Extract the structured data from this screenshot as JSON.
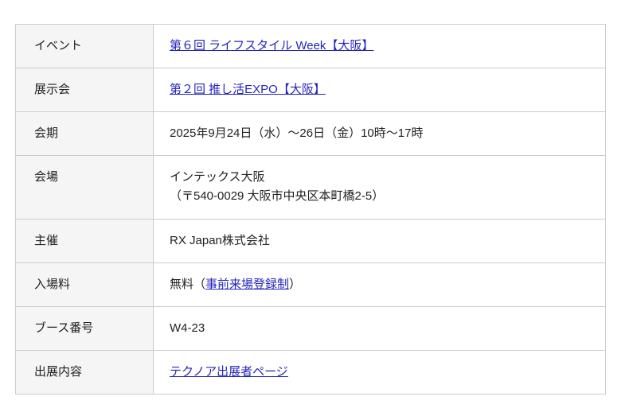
{
  "colors": {
    "label_bg": "#f5f5f5",
    "border": "#cccccc",
    "text": "#222222",
    "link": "#2525bd",
    "page_bg": "#ffffff"
  },
  "table": {
    "rows": [
      {
        "label": "イベント",
        "link_text": "第６回 ライフスタイル Week【大阪】"
      },
      {
        "label": "展示会",
        "link_text": "第２回 推し活EXPO【大阪】"
      },
      {
        "label": "会期",
        "text": "2025年9月24日（水）〜26日（金）10時〜17時"
      },
      {
        "label": "会場",
        "lines": [
          "インテックス大阪",
          "（〒540-0029 大阪市中央区本町橋2-5）"
        ]
      },
      {
        "label": "主催",
        "text": "RX Japan株式会社"
      },
      {
        "label": "入場料",
        "prefix": "無料（",
        "link_text": "事前来場登録制",
        "suffix": "）"
      },
      {
        "label": "ブース番号",
        "text": "W4-23"
      },
      {
        "label": "出展内容",
        "link_text": "テクノア出展者ページ"
      }
    ]
  }
}
